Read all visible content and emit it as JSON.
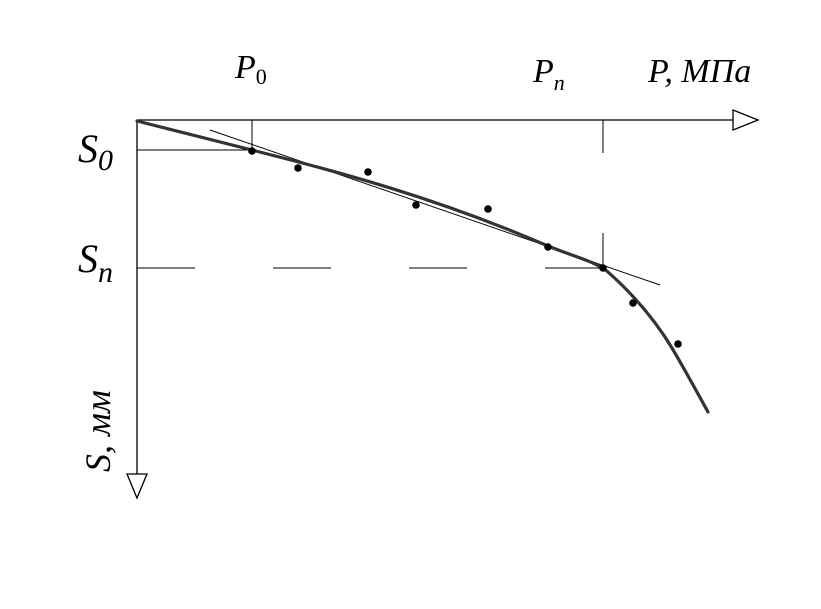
{
  "labels": {
    "p0": {
      "main": "P",
      "sub": "0"
    },
    "pn": {
      "main": "P",
      "sub": "n"
    },
    "x_axis": "P, МПа",
    "s0": {
      "main": "S",
      "sub": "0"
    },
    "sn": {
      "main": "S",
      "sub": "n"
    },
    "y_axis": "S, мм"
  },
  "chart_data": {
    "type": "scatter",
    "xlabel": "P, МПа",
    "ylabel": "S, мм",
    "x_marks": [
      "P0",
      "Pn"
    ],
    "y_marks": [
      "S0",
      "Sn"
    ],
    "y_direction": "down",
    "fitted_curve": "smooth curve, linear segment up to Pn then steepening",
    "tangent_line": "straight line through initial linear segment",
    "dashed_reference": "horizontal at Sn"
  }
}
